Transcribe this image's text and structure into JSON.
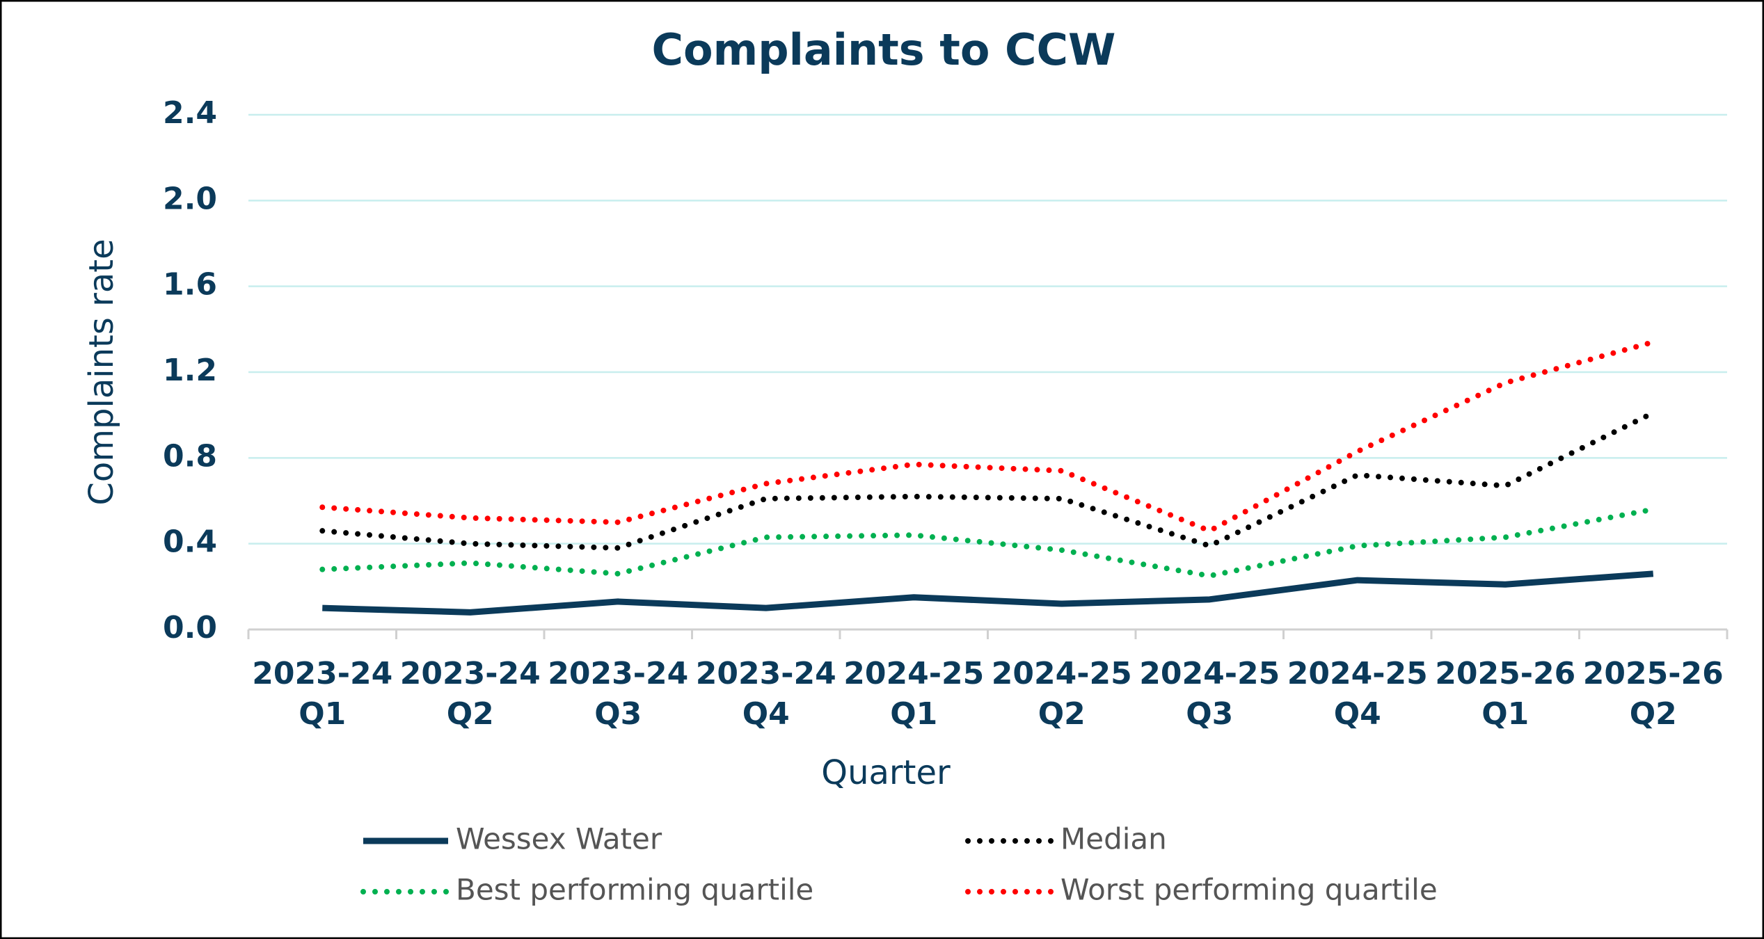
{
  "chart_data": {
    "type": "line",
    "title": "Complaints to CCW",
    "x_label": "Quarter",
    "y_label": "Complaints rate",
    "categories": [
      "2023-24\nQ1",
      "2023-24\nQ2",
      "2023-24\nQ3",
      "2023-24\nQ4",
      "2024-25\nQ1",
      "2024-25\nQ2",
      "2024-25\nQ3",
      "2024-25\nQ4",
      "2025-26\nQ1",
      "2025-26\nQ2"
    ],
    "series": [
      {
        "name": "Wessex Water",
        "color": "#0b3a5a",
        "style": "solid",
        "values": [
          0.1,
          0.08,
          0.13,
          0.1,
          0.15,
          0.12,
          0.14,
          0.23,
          0.21,
          0.26
        ]
      },
      {
        "name": "Median",
        "color": "#000000",
        "style": "dotted",
        "values": [
          0.46,
          0.4,
          0.38,
          0.61,
          0.62,
          0.61,
          0.39,
          0.72,
          0.67,
          1.01
        ]
      },
      {
        "name": "Best performing quartile",
        "color": "#00b050",
        "style": "dotted",
        "values": [
          0.28,
          0.31,
          0.26,
          0.43,
          0.44,
          0.37,
          0.25,
          0.39,
          0.43,
          0.56
        ]
      },
      {
        "name": "Worst performing quartile",
        "color": "#ff0000",
        "style": "dotted",
        "values": [
          0.57,
          0.52,
          0.5,
          0.68,
          0.77,
          0.74,
          0.46,
          0.83,
          1.15,
          1.34
        ]
      }
    ],
    "ylim": [
      0,
      2.4
    ],
    "yticks": [
      {
        "value": 0,
        "label": "0.0"
      },
      0.4,
      0.8,
      1.2,
      1.6,
      {
        "value": 2,
        "label": "2.0"
      },
      2.4
    ],
    "grid": true,
    "legend": "bottom"
  }
}
